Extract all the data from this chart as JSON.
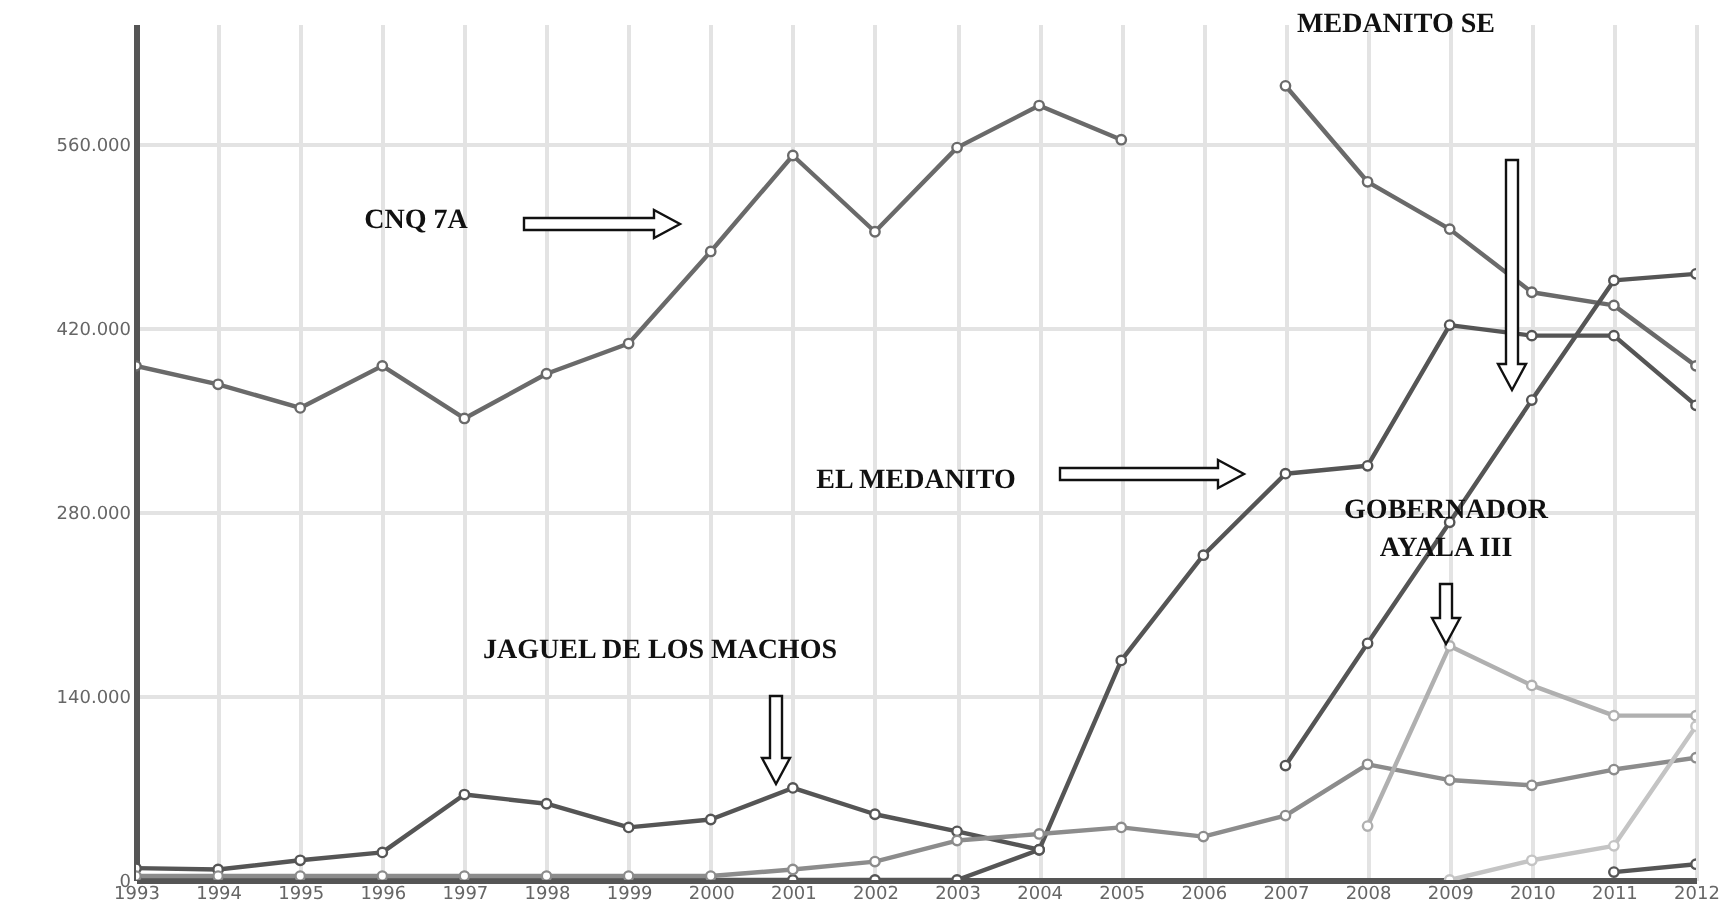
{
  "chart_data": {
    "type": "line",
    "x": [
      1993,
      1994,
      1995,
      1996,
      1997,
      1998,
      1999,
      2000,
      2001,
      2002,
      2003,
      2004,
      2005,
      2006,
      2007,
      2008,
      2009,
      2010,
      2011,
      2012
    ],
    "series": [
      {
        "color": "#6a6a6a",
        "values": [
          391000,
          377000,
          359000,
          391000,
          351000,
          385000,
          408000,
          478000,
          551000,
          493000,
          557000,
          589000,
          563000,
          null,
          604000,
          531000,
          495000,
          447000,
          437000,
          391000
        ]
      },
      {
        "color": "#555555",
        "values": [
          0,
          0,
          0,
          0,
          0,
          0,
          0,
          0,
          0,
          0,
          0,
          23000,
          167000,
          247000,
          309000,
          315000,
          422000,
          414000,
          414000,
          361000
        ]
      },
      {
        "color": "#555555",
        "values": [
          9000,
          8000,
          15000,
          21000,
          65000,
          58000,
          40000,
          46000,
          70000,
          50000,
          37000,
          23000,
          null,
          null,
          null,
          null,
          null,
          null,
          null,
          null
        ]
      },
      {
        "color": "#8c8c8c",
        "values": [
          3000,
          3000,
          3000,
          3000,
          3000,
          3000,
          3000,
          3000,
          8000,
          14000,
          30000,
          35000,
          40000,
          33000,
          49000,
          88000,
          76000,
          72000,
          84000,
          93000
        ]
      },
      {
        "color": "#555555",
        "values": [
          null,
          null,
          null,
          null,
          null,
          null,
          null,
          null,
          null,
          null,
          null,
          null,
          null,
          null,
          87000,
          180000,
          272000,
          365000,
          456000,
          461000
        ]
      },
      {
        "color": "#b0b0b0",
        "values": [
          null,
          null,
          null,
          null,
          null,
          null,
          null,
          null,
          null,
          null,
          null,
          null,
          null,
          null,
          null,
          41000,
          178000,
          148000,
          125000,
          125000
        ]
      },
      {
        "color": "#c4c4c4",
        "values": [
          null,
          null,
          null,
          null,
          null,
          null,
          null,
          null,
          null,
          null,
          null,
          null,
          null,
          null,
          null,
          null,
          0,
          15000,
          26000,
          117000
        ]
      },
      {
        "color": "#555555",
        "values": [
          null,
          null,
          null,
          null,
          null,
          null,
          null,
          null,
          null,
          null,
          null,
          null,
          null,
          null,
          null,
          null,
          null,
          null,
          6000,
          12000
        ]
      }
    ],
    "xlim": [
      1993,
      2012
    ],
    "xticks": [
      1993,
      1994,
      1995,
      1996,
      1997,
      1998,
      1999,
      2000,
      2001,
      2002,
      2003,
      2004,
      2005,
      2006,
      2007,
      2008,
      2009,
      2010,
      2011,
      2012
    ],
    "ylim": [
      0,
      651000
    ],
    "yticks": [
      0,
      {
        "value": 140000,
        "label": "140.000"
      },
      {
        "value": 280000,
        "label": "280.000"
      },
      {
        "value": 420000,
        "label": "420.000"
      },
      {
        "value": 560000,
        "label": "560.000"
      }
    ],
    "grid": true,
    "marker": "circle",
    "annotations": [
      "CNQ 7A",
      "EL MEDANITO",
      "MEDANITO SE",
      "GOBERNADOR\nAYALA III",
      "JAGUEL DE LOS MACHOS"
    ]
  }
}
